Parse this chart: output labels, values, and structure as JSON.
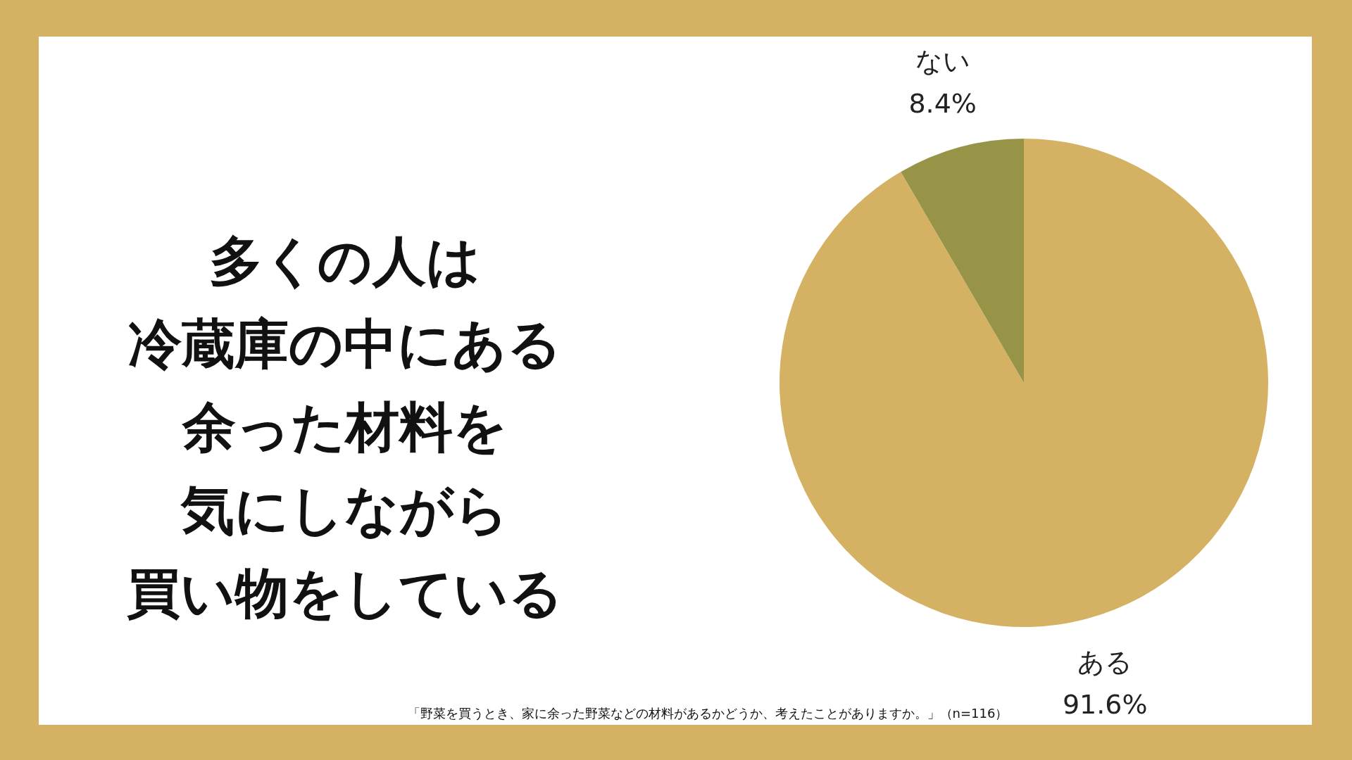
{
  "chart_data": {
    "type": "pie",
    "title": "多くの人は冷蔵庫の中にある余った材料を気にしながら買い物をしている",
    "categories": [
      "ある",
      "ない"
    ],
    "values": [
      91.6,
      8.4
    ],
    "value_labels": [
      "91.6%",
      "8.4%"
    ],
    "colors": [
      "#d5b263",
      "#979347"
    ],
    "annotations": [
      "「野菜を買うとき、家に余った野菜などの材料があるかどうか、考えたことがありますか。」（n=116）"
    ],
    "legend": false
  }
}
